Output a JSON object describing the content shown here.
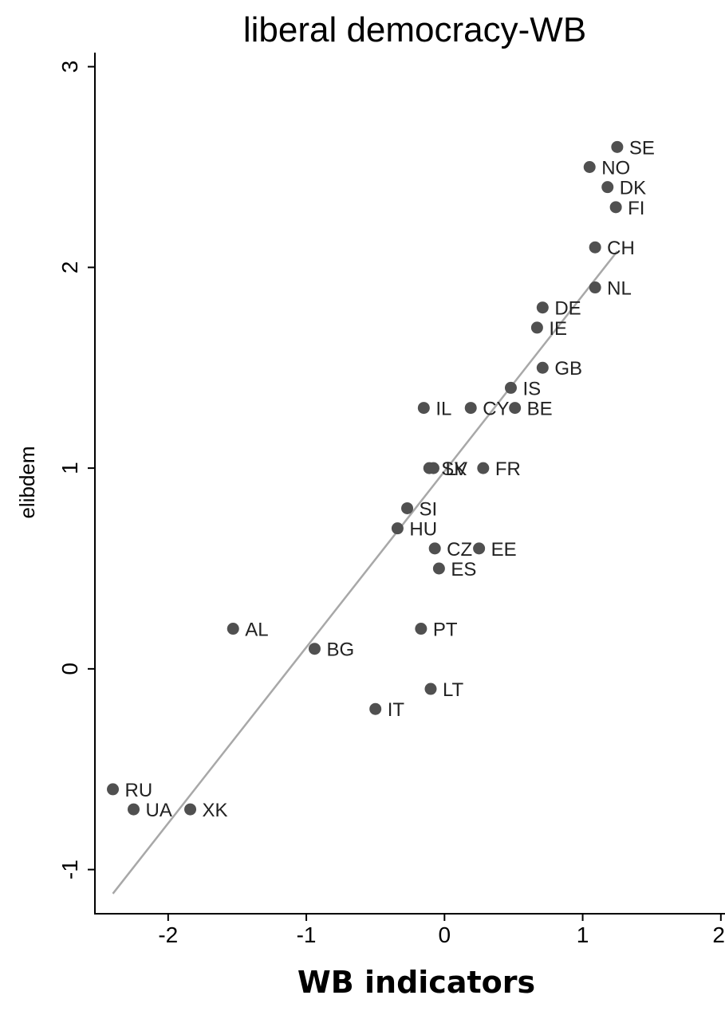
{
  "chart_data": {
    "type": "scatter",
    "title": "liberal democracy-WB",
    "xlabel": "WB indicators",
    "ylabel": "elibdem",
    "xlim": [
      -2.53,
      2.03
    ],
    "ylim": [
      -1.22,
      3.07
    ],
    "xticks": [
      -2,
      -1,
      0,
      1,
      2
    ],
    "yticks": [
      -1,
      0,
      1,
      2,
      3
    ],
    "grid": false,
    "points": [
      {
        "label": "SE",
        "x": 1.25,
        "y": 2.6
      },
      {
        "label": "NO",
        "x": 1.05,
        "y": 2.5
      },
      {
        "label": "DK",
        "x": 1.18,
        "y": 2.4
      },
      {
        "label": "FI",
        "x": 1.24,
        "y": 2.3
      },
      {
        "label": "CH",
        "x": 1.09,
        "y": 2.1
      },
      {
        "label": "NL",
        "x": 1.09,
        "y": 1.9
      },
      {
        "label": "DE",
        "x": 0.71,
        "y": 1.8
      },
      {
        "label": "IE",
        "x": 0.67,
        "y": 1.7
      },
      {
        "label": "GB",
        "x": 0.71,
        "y": 1.5
      },
      {
        "label": "IS",
        "x": 0.48,
        "y": 1.4
      },
      {
        "label": "IL",
        "x": -0.15,
        "y": 1.3
      },
      {
        "label": "CY",
        "x": 0.19,
        "y": 1.3
      },
      {
        "label": "BE",
        "x": 0.51,
        "y": 1.3
      },
      {
        "label": "SK",
        "x": -0.11,
        "y": 1.0
      },
      {
        "label": "LV",
        "x": -0.08,
        "y": 1.0
      },
      {
        "label": "FR",
        "x": 0.28,
        "y": 1.0
      },
      {
        "label": "SI",
        "x": -0.27,
        "y": 0.8
      },
      {
        "label": "HU",
        "x": -0.34,
        "y": 0.7
      },
      {
        "label": "CZ",
        "x": -0.07,
        "y": 0.6
      },
      {
        "label": "EE",
        "x": 0.25,
        "y": 0.6
      },
      {
        "label": "ES",
        "x": -0.04,
        "y": 0.5
      },
      {
        "label": "AL",
        "x": -1.53,
        "y": 0.2
      },
      {
        "label": "PT",
        "x": -0.17,
        "y": 0.2
      },
      {
        "label": "BG",
        "x": -0.94,
        "y": 0.1
      },
      {
        "label": "LT",
        "x": -0.1,
        "y": -0.1
      },
      {
        "label": "IT",
        "x": -0.5,
        "y": -0.2
      },
      {
        "label": "RU",
        "x": -2.4,
        "y": -0.6
      },
      {
        "label": "UA",
        "x": -2.25,
        "y": -0.7
      },
      {
        "label": "XK",
        "x": -1.84,
        "y": -0.7
      }
    ],
    "fit_line": {
      "x_start": -2.4,
      "y_start": -1.12,
      "x_end": 1.25,
      "y_end": 2.08
    }
  }
}
